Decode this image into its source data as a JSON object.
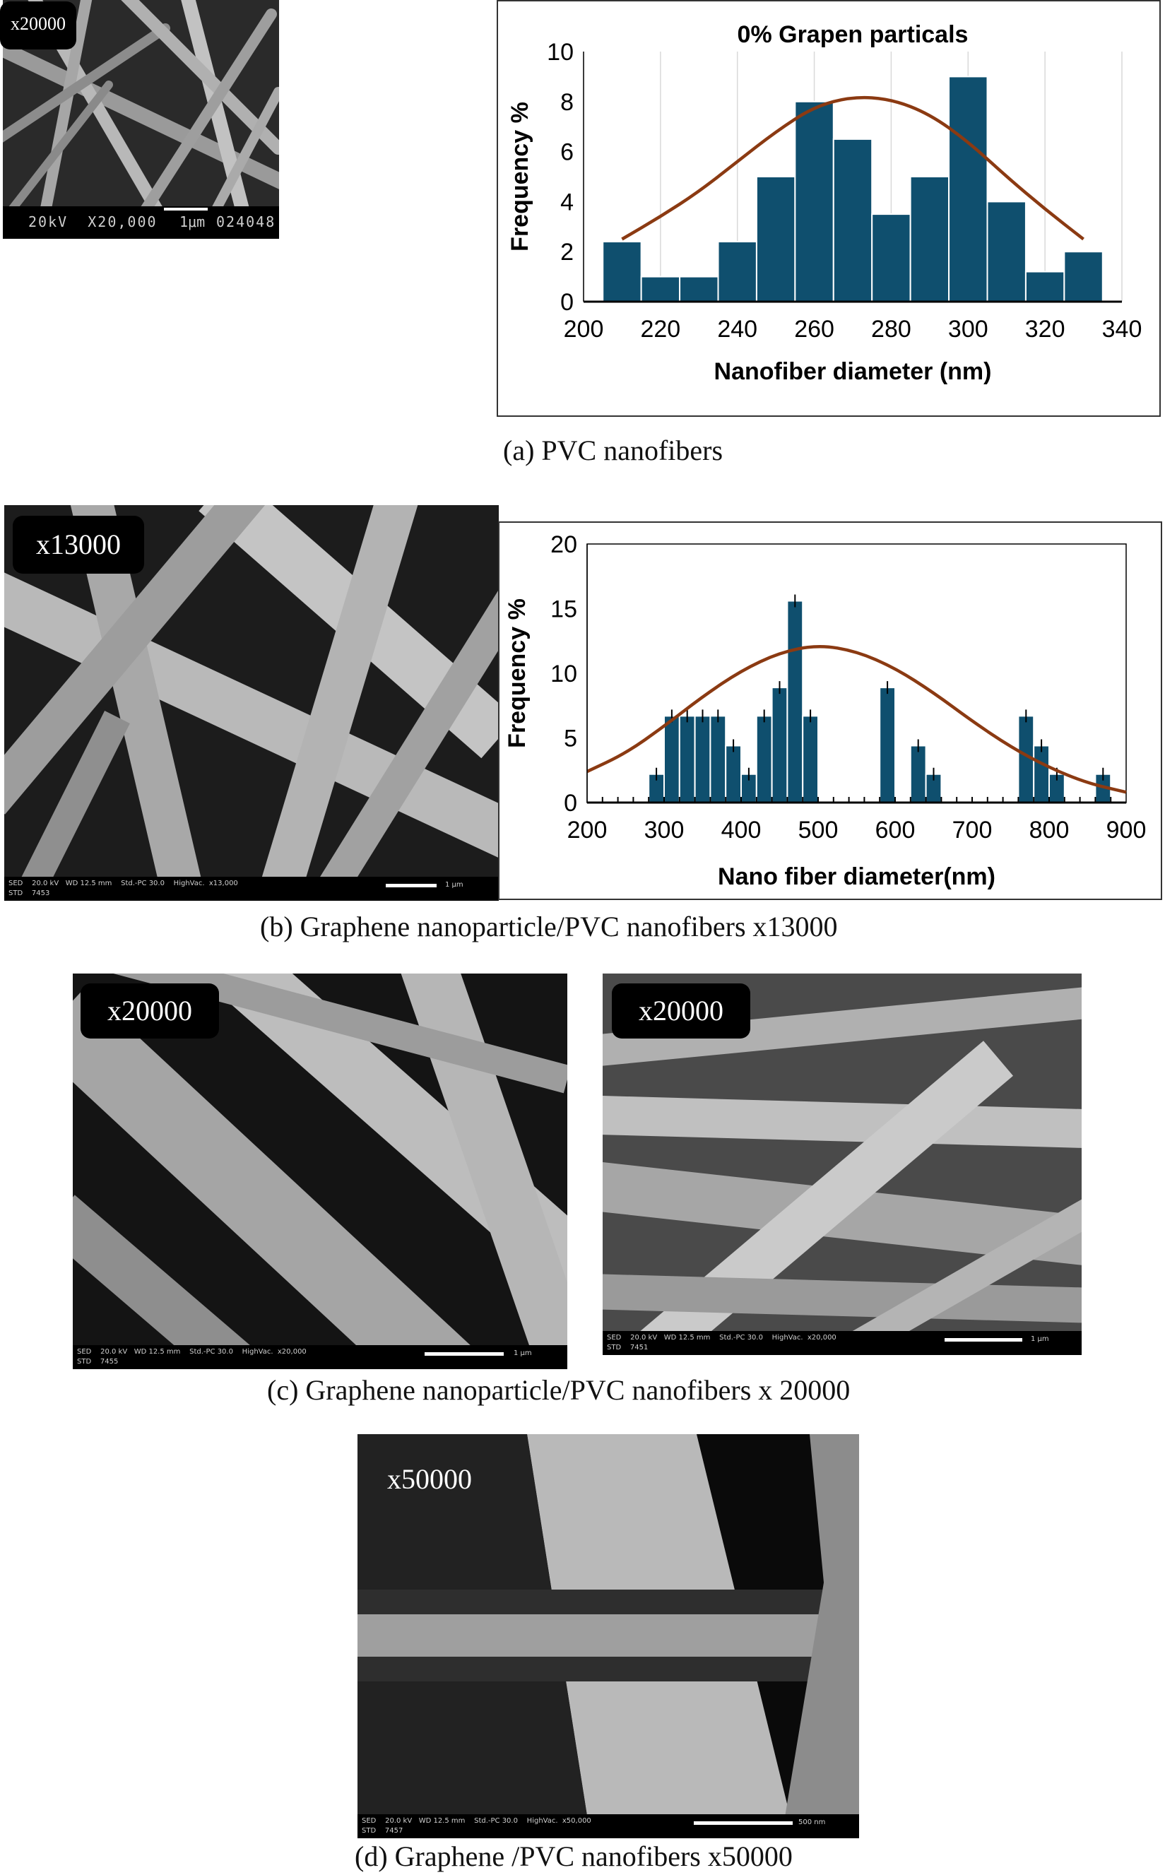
{
  "panels": {
    "a": {
      "magnification": "x20000",
      "sem_info": "20kV  X20,000",
      "sem_scale": "1μm",
      "sem_code": "024048",
      "caption": "(a) PVC nanofibers"
    },
    "b": {
      "magnification": "x13000",
      "sem_info_line1": "SED    20.0 kV   WD 12.5 mm    Std.-PC 30.0    HighVac.  x13,000",
      "sem_info_line2": "STD    7453",
      "sem_scale": "1 μm",
      "caption": "(b)  Graphene nanoparticle/PVC nanofibers x13000"
    },
    "c": {
      "left": {
        "magnification": "x20000",
        "sem_info_line1": "SED    20.0 kV   WD 12.5 mm    Std.-PC 30.0    HighVac.  x20,000",
        "sem_info_line2": "STD    7455",
        "sem_scale": "1 μm"
      },
      "right": {
        "magnification": "x20000",
        "sem_info_line1": "SED    20.0 kV   WD 12.5 mm    Std.-PC 30.0    HighVac.  x20,000",
        "sem_info_line2": "STD    7451",
        "sem_scale": "1 μm"
      },
      "caption": "(c)  Graphene nanoparticle/PVC nanofibers x 20000"
    },
    "d": {
      "magnification": "x50000",
      "sem_info_line1": "SED    20.0 kV   WD 12.5 mm    Std.-PC 30.0    HighVac.  x50,000",
      "sem_info_line2": "STD    7457",
      "sem_scale": "500 nm",
      "caption": "(d)  Graphene /PVC nanofibers x50000"
    }
  },
  "colors": {
    "bar": "#0f4f6e",
    "curve": "#8b3a12",
    "axis": "#000000"
  },
  "chart_data": [
    {
      "type": "bar",
      "title": "0% Grapen particals",
      "xlabel": "Nanofiber diameter (nm)",
      "ylabel": "Frequency  %",
      "xlim": [
        200,
        340
      ],
      "ylim": [
        0,
        10
      ],
      "xticks": [
        "200",
        "220",
        "240",
        "260",
        "280",
        "300",
        "320",
        "340"
      ],
      "yticks": [
        "0",
        "2",
        "4",
        "6",
        "8",
        "10"
      ],
      "bin_width": 10,
      "bin_centers": [
        210,
        220,
        230,
        240,
        250,
        260,
        270,
        280,
        290,
        300,
        310,
        320,
        330
      ],
      "values": [
        2.4,
        1.0,
        1.0,
        2.4,
        5.0,
        8.0,
        6.5,
        3.5,
        5.0,
        9.0,
        4.0,
        1.2,
        2.0
      ],
      "fit_curve": {
        "x": [
          210,
          220,
          230,
          240,
          250,
          260,
          270,
          280,
          290,
          300,
          310,
          320,
          330
        ],
        "y": [
          2.5,
          3.4,
          4.4,
          5.6,
          6.8,
          7.8,
          8.2,
          8.1,
          7.5,
          6.4,
          5.0,
          3.7,
          2.5
        ]
      }
    },
    {
      "type": "bar",
      "title": "",
      "xlabel": "Nano fiber diameter(nm)",
      "ylabel": "Frequency %",
      "xlim": [
        200,
        900
      ],
      "ylim": [
        0,
        20
      ],
      "xticks": [
        "200",
        "300",
        "400",
        "500",
        "600",
        "700",
        "800",
        "900"
      ],
      "yticks": [
        "0",
        "5",
        "10",
        "15",
        "20"
      ],
      "bin_width": 20,
      "bin_centers": [
        290,
        310,
        330,
        350,
        370,
        390,
        410,
        430,
        450,
        470,
        490,
        590,
        630,
        650,
        770,
        790,
        810,
        870
      ],
      "values": [
        2.2,
        6.7,
        6.7,
        6.7,
        6.7,
        4.4,
        2.2,
        6.7,
        8.9,
        15.6,
        6.7,
        8.9,
        4.4,
        2.2,
        6.7,
        4.4,
        2.2,
        2.2
      ],
      "fit_curve": {
        "x": [
          200,
          250,
          300,
          350,
          400,
          450,
          500,
          550,
          600,
          650,
          700,
          750,
          800,
          850,
          900
        ],
        "y": [
          2.4,
          3.8,
          5.9,
          8.2,
          10.2,
          11.6,
          12.2,
          11.7,
          10.4,
          8.5,
          6.3,
          4.3,
          2.7,
          1.5,
          0.8
        ]
      }
    }
  ]
}
